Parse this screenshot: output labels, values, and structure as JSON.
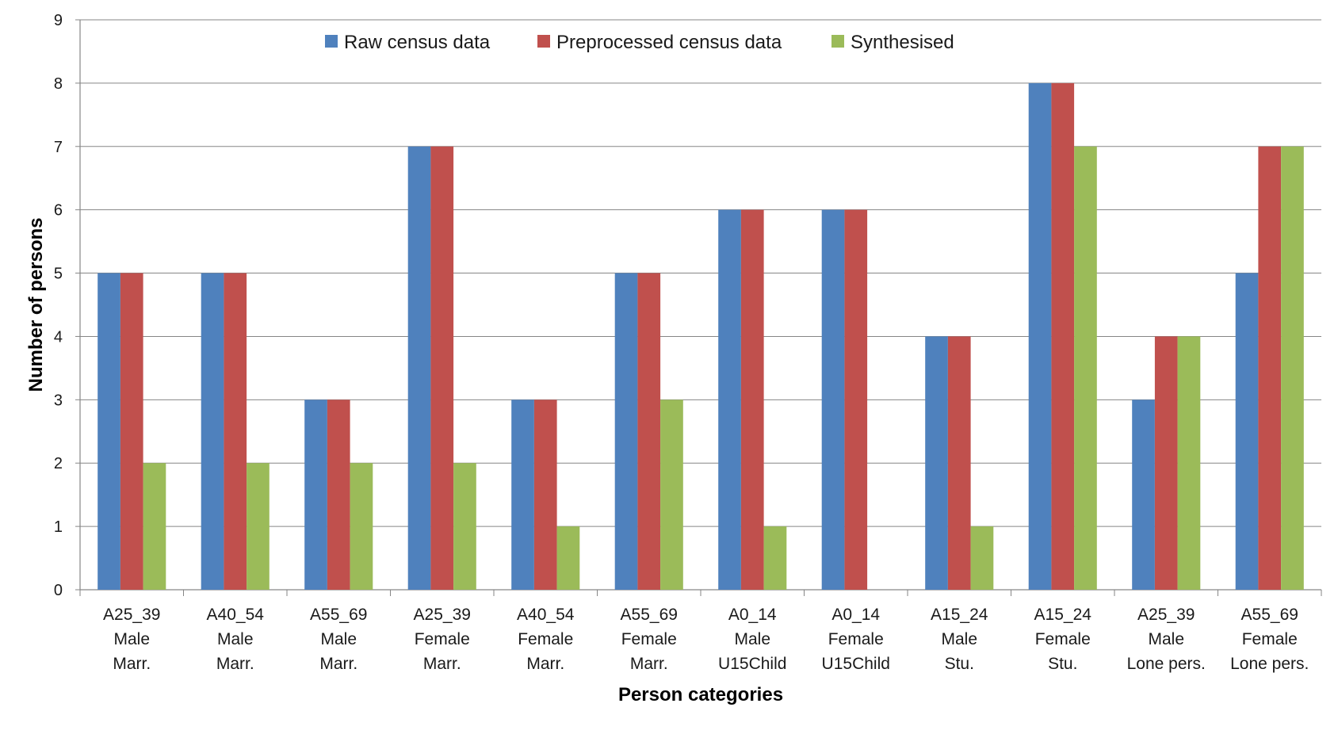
{
  "chart_data": {
    "type": "bar",
    "title": "",
    "xlabel": "Person categories",
    "ylabel": "Number of persons",
    "ylim": [
      0,
      9
    ],
    "yticks": [
      0,
      1,
      2,
      3,
      4,
      5,
      6,
      7,
      8,
      9
    ],
    "grid": "horizontal",
    "legend_position": "top",
    "categories": [
      [
        "A25_39",
        "Male",
        "Marr."
      ],
      [
        "A40_54",
        "Male",
        "Marr."
      ],
      [
        "A55_69",
        "Male",
        "Marr."
      ],
      [
        "A25_39",
        "Female",
        "Marr."
      ],
      [
        "A40_54",
        "Female",
        "Marr."
      ],
      [
        "A55_69",
        "Female",
        "Marr."
      ],
      [
        "A0_14",
        "Male",
        "U15Child"
      ],
      [
        "A0_14",
        "Female",
        "U15Child"
      ],
      [
        "A15_24",
        "Male",
        "Stu."
      ],
      [
        "A15_24",
        "Female",
        "Stu."
      ],
      [
        "A25_39",
        "Male",
        "Lone pers."
      ],
      [
        "A55_69",
        "Female",
        "Lone pers."
      ]
    ],
    "series": [
      {
        "name": "Raw census data",
        "color": "#4F81BD",
        "values": [
          5,
          5,
          3,
          7,
          3,
          5,
          6,
          6,
          4,
          8,
          3,
          5
        ]
      },
      {
        "name": "Preprocessed census data",
        "color": "#C0504D",
        "values": [
          5,
          5,
          3,
          7,
          3,
          5,
          6,
          6,
          4,
          8,
          4,
          7
        ]
      },
      {
        "name": "Synthesised",
        "color": "#9BBB59",
        "values": [
          2,
          2,
          2,
          2,
          1,
          3,
          1,
          0,
          1,
          7,
          4,
          7
        ]
      }
    ]
  }
}
